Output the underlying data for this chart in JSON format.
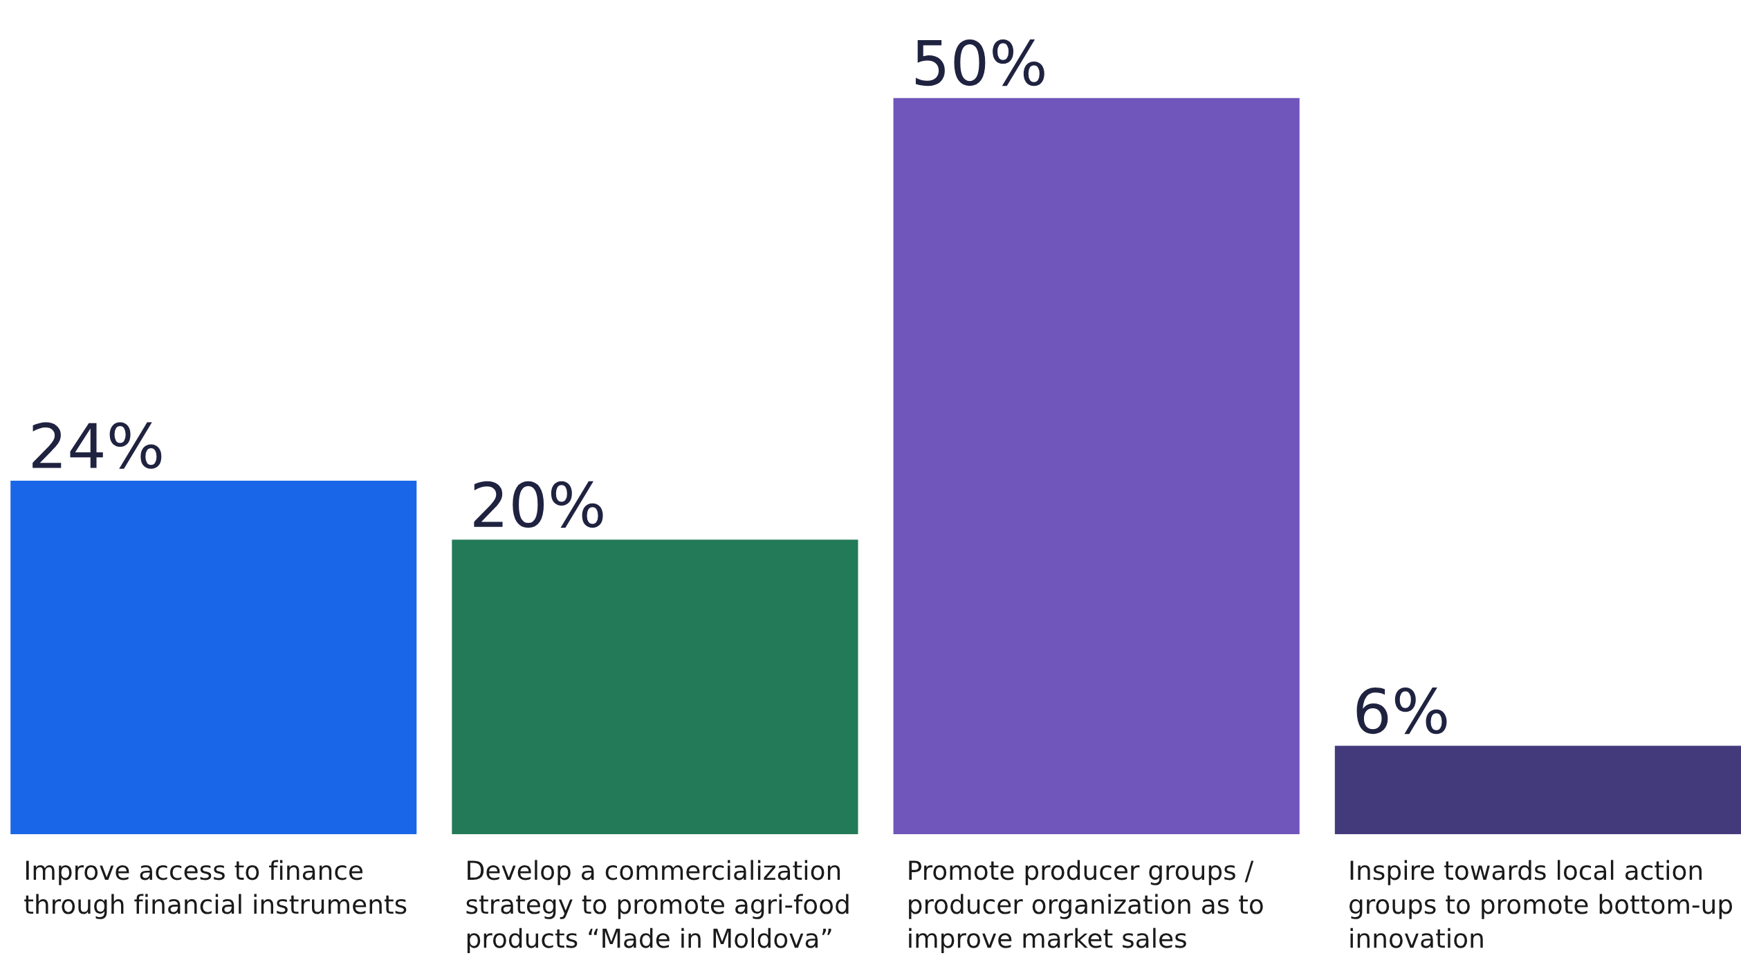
{
  "chart_data": {
    "type": "bar",
    "categories": [
      "Improve access to finance\nthrough financial instruments",
      "Develop a commercialization\nstrategy to promote agri-food\nproducts “Made in Moldova”",
      "Promote producer groups /\nproducer organization as to\nimprove market sales",
      "Inspire towards local action\ngroups to promote bottom-up\ninnovation"
    ],
    "values": [
      24,
      20,
      50,
      6
    ],
    "colors": [
      "#1a66e8",
      "#237a58",
      "#7055bb",
      "#433a7c"
    ],
    "value_labels": [
      "24%",
      "20%",
      "50%",
      "6%"
    ]
  }
}
